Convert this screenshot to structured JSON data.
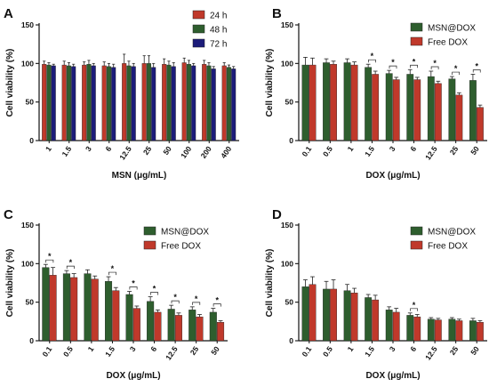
{
  "chart_data": [
    {
      "panel": "A",
      "type": "bar",
      "ylabel": "Cell viability (%)",
      "xlabel": "MSN (μg/mL)",
      "ylim": [
        0,
        150
      ],
      "yticks": [
        0,
        50,
        100,
        150
      ],
      "legend_position": "top-right",
      "categories": [
        "1",
        "1.5",
        "3",
        "6",
        "12.5",
        "25",
        "50",
        "100",
        "200",
        "400"
      ],
      "series": [
        {
          "name": "24 h",
          "color": "#c0392b",
          "values": [
            99,
            98,
            98,
            97,
            100,
            100,
            99,
            101,
            99,
            97
          ],
          "errors": [
            4,
            5,
            4,
            5,
            12,
            10,
            7,
            6,
            5,
            4
          ]
        },
        {
          "name": "48 h",
          "color": "#2e5e2e",
          "values": [
            98,
            97,
            99,
            96,
            97,
            100,
            98,
            99,
            97,
            95
          ],
          "errors": [
            3,
            4,
            5,
            4,
            6,
            10,
            5,
            5,
            4,
            3
          ]
        },
        {
          "name": "72 h",
          "color": "#1c1c7a",
          "values": [
            97,
            96,
            97,
            95,
            96,
            95,
            96,
            97,
            93,
            93
          ],
          "errors": [
            2,
            3,
            3,
            4,
            4,
            5,
            5,
            3,
            3,
            3
          ]
        }
      ],
      "significance": []
    },
    {
      "panel": "B",
      "type": "bar",
      "ylabel": "Cell viability (%)",
      "xlabel": "DOX (μg/mL)",
      "ylim": [
        0,
        150
      ],
      "yticks": [
        0,
        50,
        100,
        150
      ],
      "legend_position": "top-right",
      "categories": [
        "0.1",
        "0.5",
        "1",
        "1.5",
        "3",
        "6",
        "12.5",
        "25",
        "50"
      ],
      "series": [
        {
          "name": "MSN@DOX",
          "color": "#2e5e2e",
          "values": [
            98,
            101,
            101,
            95,
            87,
            86,
            83,
            80,
            78
          ],
          "errors": [
            10,
            5,
            5,
            4,
            4,
            6,
            7,
            3,
            8
          ]
        },
        {
          "name": "Free DOX",
          "color": "#c0392b",
          "values": [
            98,
            99,
            98,
            86,
            79,
            79,
            74,
            59,
            43
          ],
          "errors": [
            9,
            4,
            4,
            4,
            3,
            3,
            3,
            3,
            3
          ]
        }
      ],
      "significance": [
        3,
        4,
        5,
        6,
        7,
        8
      ],
      "significance_label": "*"
    },
    {
      "panel": "C",
      "type": "bar",
      "ylabel": "Cell viability (%)",
      "xlabel": "DOX (μg/mL)",
      "ylim": [
        0,
        150
      ],
      "yticks": [
        0,
        50,
        100,
        150
      ],
      "legend_position": "top-right",
      "categories": [
        "0.1",
        "0.5",
        "1",
        "1.5",
        "3",
        "6",
        "12.5",
        "25",
        "50"
      ],
      "series": [
        {
          "name": "MSN@DOX",
          "color": "#2e5e2e",
          "values": [
            95,
            87,
            87,
            77,
            60,
            51,
            41,
            40,
            37
          ],
          "errors": [
            4,
            4,
            5,
            6,
            4,
            6,
            5,
            4,
            5
          ]
        },
        {
          "name": "Free DOX",
          "color": "#c0392b",
          "values": [
            85,
            82,
            80,
            65,
            42,
            37,
            33,
            31,
            24
          ],
          "errors": [
            10,
            5,
            4,
            4,
            3,
            3,
            3,
            3,
            2
          ]
        }
      ],
      "significance": [
        0,
        1,
        3,
        4,
        5,
        6,
        7,
        8
      ],
      "significance_label": "*"
    },
    {
      "panel": "D",
      "type": "bar",
      "ylabel": "Cell viability (%)",
      "xlabel": "DOX (μg/mL)",
      "ylim": [
        0,
        150
      ],
      "yticks": [
        0,
        50,
        100,
        150
      ],
      "legend_position": "top-right",
      "categories": [
        "0.1",
        "0.5",
        "1",
        "1.5",
        "3",
        "6",
        "12.5",
        "25",
        "50"
      ],
      "series": [
        {
          "name": "MSN@DOX",
          "color": "#2e5e2e",
          "values": [
            70,
            67,
            65,
            56,
            40,
            33,
            28,
            28,
            26
          ],
          "errors": [
            9,
            10,
            8,
            4,
            4,
            3,
            2,
            2,
            3
          ]
        },
        {
          "name": "Free DOX",
          "color": "#c0392b",
          "values": [
            73,
            67,
            62,
            53,
            37,
            31,
            27,
            26,
            24
          ],
          "errors": [
            10,
            12,
            6,
            6,
            5,
            3,
            2,
            2,
            2
          ]
        }
      ],
      "significance": [
        5
      ],
      "significance_label": "*"
    }
  ]
}
